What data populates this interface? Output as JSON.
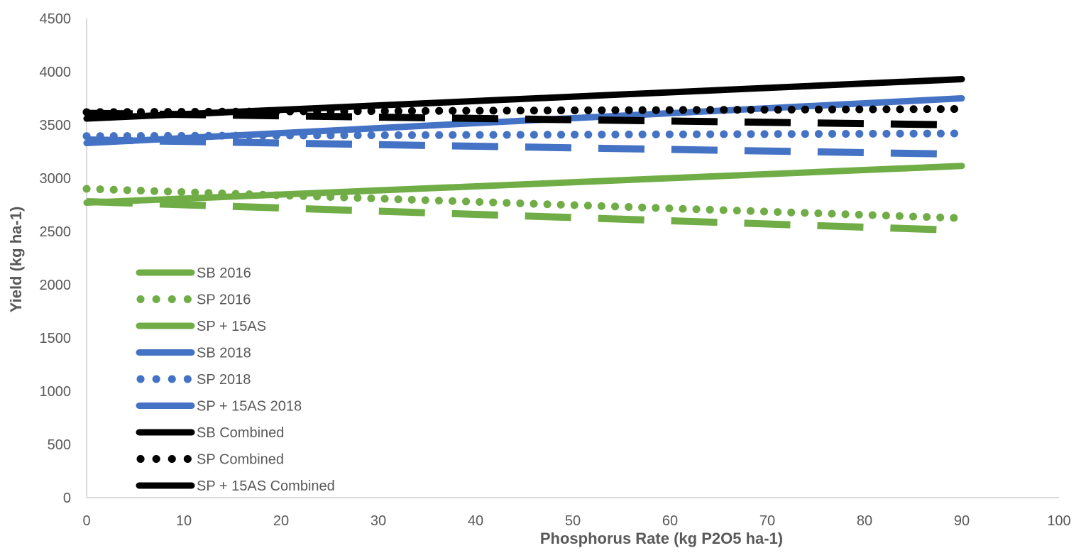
{
  "chart_data": {
    "type": "line",
    "xlabel": "Phosphorus Rate (kg P2O5 ha-1)",
    "ylabel": "Yield (kg ha-1)",
    "xlim": [
      0,
      100
    ],
    "ylim": [
      0,
      4500
    ],
    "x_ticks": [
      "0",
      "10",
      "20",
      "30",
      "40",
      "50",
      "60",
      "70",
      "80",
      "90",
      "100"
    ],
    "y_ticks": [
      "0",
      "500",
      "1000",
      "1500",
      "2000",
      "2500",
      "3000",
      "3500",
      "4000",
      "4500"
    ],
    "grid": false,
    "legend_position": "bottom-left",
    "series": [
      {
        "name": "SB 2016",
        "color": "#70ad47",
        "style": "solid",
        "x": [
          0,
          90
        ],
        "values": [
          2770,
          3115
        ]
      },
      {
        "name": "SP 2016",
        "color": "#70ad47",
        "style": "dotted",
        "x": [
          0,
          90
        ],
        "values": [
          2900,
          2625
        ]
      },
      {
        "name": "SP + 15AS",
        "color": "#70ad47",
        "style": "long-dash",
        "x": [
          0,
          90
        ],
        "values": [
          2780,
          2510
        ]
      },
      {
        "name": "SB 2018",
        "color": "#4472c4",
        "style": "solid",
        "x": [
          0,
          90
        ],
        "values": [
          3330,
          3750
        ]
      },
      {
        "name": "SP 2018",
        "color": "#4472c4",
        "style": "dotted",
        "x": [
          0,
          90
        ],
        "values": [
          3395,
          3420
        ]
      },
      {
        "name": "SP + 15AS 2018",
        "color": "#4472c4",
        "style": "long-dash",
        "x": [
          0,
          90
        ],
        "values": [
          3360,
          3225
        ]
      },
      {
        "name": "SB Combined",
        "color": "#000000",
        "style": "solid",
        "x": [
          0,
          90
        ],
        "values": [
          3560,
          3930
        ]
      },
      {
        "name": "SP Combined",
        "color": "#000000",
        "style": "dotted",
        "x": [
          0,
          90
        ],
        "values": [
          3620,
          3650
        ]
      },
      {
        "name": "SP + 15AS Combined",
        "color": "#000000",
        "style": "long-dash",
        "x": [
          0,
          90
        ],
        "values": [
          3610,
          3500
        ]
      }
    ]
  }
}
